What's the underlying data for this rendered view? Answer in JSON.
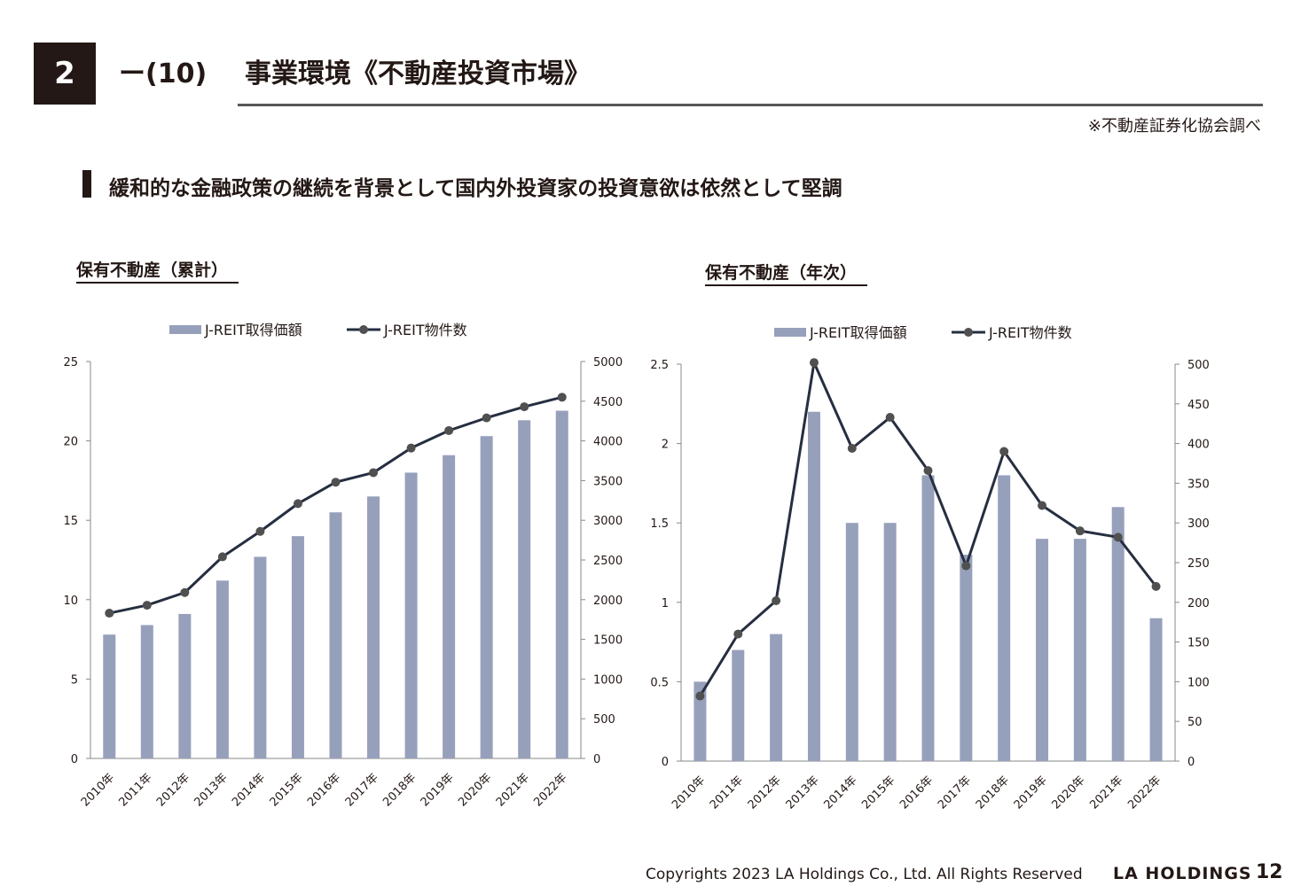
{
  "header": {
    "section_number": "2",
    "section_sub": "ー(10)",
    "title": "事業環境《不動産投資市場》",
    "source_note": "※不動産証券化協会調べ",
    "headline": "緩和的な金融政策の継続を背景として国内外投資家の投資意欲は依然として堅調"
  },
  "colors": {
    "bar": "#97a0bb",
    "line": "#262e40",
    "marker": "#505050",
    "axis": "#231815"
  },
  "chart_data": [
    {
      "type": "bar",
      "title": "保有不動産（累計）",
      "categories": [
        "2010年",
        "2011年",
        "2012年",
        "2013年",
        "2014年",
        "2015年",
        "2016年",
        "2017年",
        "2018年",
        "2019年",
        "2020年",
        "2021年",
        "2022年"
      ],
      "series": [
        {
          "name": "J-REIT取得価額",
          "type": "bar",
          "axis": "left",
          "values": [
            7.8,
            8.4,
            9.1,
            11.2,
            12.7,
            14.0,
            15.5,
            16.5,
            18.0,
            19.1,
            20.3,
            21.3,
            21.9
          ]
        },
        {
          "name": "J-REIT物件数",
          "type": "line",
          "axis": "right",
          "values": [
            1830,
            1930,
            2090,
            2540,
            2860,
            3210,
            3480,
            3600,
            3910,
            4130,
            4290,
            4430,
            4550
          ]
        }
      ],
      "ylim_left": [
        0,
        25
      ],
      "yticks_left": [
        "0",
        "5",
        "10",
        "15",
        "20",
        "25"
      ],
      "ylim_right": [
        0,
        5000
      ],
      "yticks_right": [
        "0",
        "500",
        "1000",
        "1500",
        "2000",
        "2500",
        "3000",
        "3500",
        "4000",
        "4500",
        "5000"
      ],
      "legend": "top",
      "grid": false
    },
    {
      "type": "bar",
      "title": "保有不動産（年次）",
      "categories": [
        "2010年",
        "2011年",
        "2012年",
        "2013年",
        "2014年",
        "2015年",
        "2016年",
        "2017年",
        "2018年",
        "2019年",
        "2020年",
        "2021年",
        "2022年"
      ],
      "series": [
        {
          "name": "J-REIT取得価額",
          "type": "bar",
          "axis": "left",
          "values": [
            0.5,
            0.7,
            0.8,
            2.2,
            1.5,
            1.5,
            1.8,
            1.3,
            1.8,
            1.4,
            1.4,
            1.6,
            0.9
          ]
        },
        {
          "name": "J-REIT物件数",
          "type": "line",
          "axis": "right",
          "values": [
            82,
            160,
            202,
            502,
            394,
            433,
            366,
            246,
            390,
            322,
            290,
            282,
            220
          ]
        }
      ],
      "ylim_left": [
        0,
        2.5
      ],
      "yticks_left": [
        "0",
        "0.5",
        "1",
        "1.5",
        "2",
        "2.5"
      ],
      "ylim_right": [
        0,
        500
      ],
      "yticks_right": [
        "0",
        "50",
        "100",
        "150",
        "200",
        "250",
        "300",
        "350",
        "400",
        "450",
        "500"
      ],
      "legend": "top",
      "grid": false
    }
  ],
  "footer": {
    "copyright": "Copyrights 2023 LA Holdings Co., Ltd.  All Rights Reserved",
    "brand": "LA HOLDINGS",
    "page": "12"
  }
}
